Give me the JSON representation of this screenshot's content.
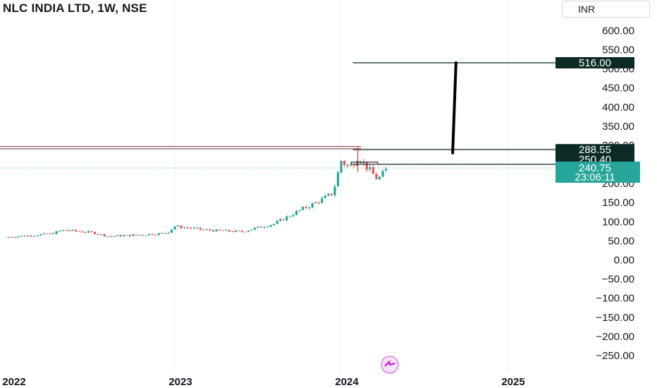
{
  "chart_data": {
    "type": "candlestick",
    "title": "NLC INDIA LTD, 1W, NSE",
    "currency": "INR",
    "y_axis": {
      "ticks": [
        "600.00",
        "550.00",
        "500.00",
        "450.00",
        "400.00",
        "350.00",
        "300.00",
        "250.00",
        "200.00",
        "150.00",
        "100.00",
        "50.00",
        "0.00",
        "−50.00",
        "−100.00",
        "−150.00",
        "−200.00",
        "−250.00"
      ],
      "ylim": [
        -275,
        620
      ]
    },
    "x_axis": {
      "ticks": [
        "2022",
        "2023",
        "2024",
        "2025"
      ]
    },
    "candles_summary": [
      {
        "period": "2022",
        "approx_range": [
          55,
          90
        ]
      },
      {
        "period": "2023 H1",
        "approx_range": [
          70,
          100
        ]
      },
      {
        "period": "2023 H2",
        "approx_range": [
          100,
          200
        ]
      },
      {
        "period": "2024 Q1",
        "approx_range": [
          195,
          300
        ]
      }
    ],
    "annotations": {
      "target_label": "516.00",
      "level_label": "288.55",
      "support_label": "250.40",
      "last_price": "240.75",
      "countdown": "23:06:11"
    },
    "colors": {
      "up": "#26a69a",
      "down": "#ef5350",
      "label_dark": "#0d2b26",
      "last_price_bg": "#26a69a",
      "hline_brown": "#8d5a5a",
      "projection": "#000000"
    }
  }
}
